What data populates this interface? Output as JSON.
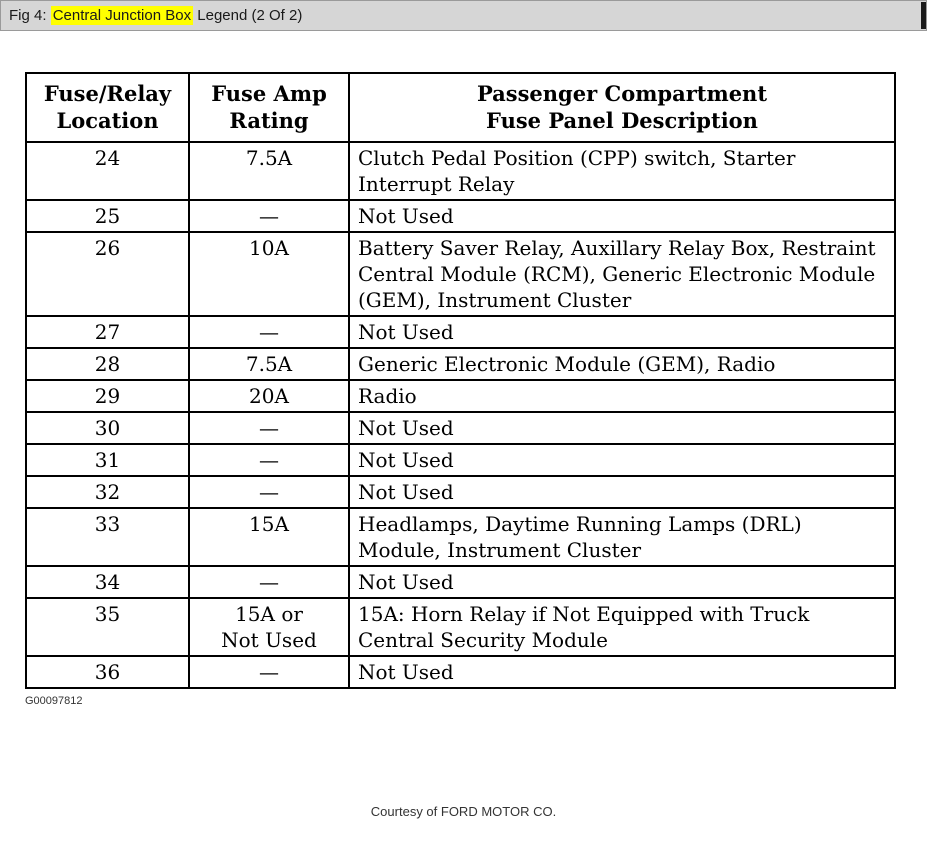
{
  "header": {
    "prefix": "Fig 4: ",
    "highlight": "Central Junction Box",
    "suffix": " Legend (2 Of 2)",
    "highlight_color": "#ffff00"
  },
  "table": {
    "header": {
      "col1": {
        "line1": "Fuse/Relay",
        "line2": "Location"
      },
      "col2": {
        "line1": "Fuse Amp",
        "line2": "Rating"
      },
      "col3": {
        "line1": "Passenger Compartment",
        "line2": "Fuse Panel Description"
      }
    },
    "rows": [
      {
        "location": "24",
        "rating": "7.5A",
        "description": "Clutch Pedal Position (CPP) switch, Starter Interrupt Relay"
      },
      {
        "location": "25",
        "rating": "—",
        "description": "Not Used"
      },
      {
        "location": "26",
        "rating": "10A",
        "description": "Battery Saver Relay, Auxillary Relay Box, Restraint Central Module (RCM), Generic Electronic Module (GEM), Instrument Cluster"
      },
      {
        "location": "27",
        "rating": "—",
        "description": "Not Used"
      },
      {
        "location": "28",
        "rating": "7.5A",
        "description": "Generic Electronic Module (GEM), Radio"
      },
      {
        "location": "29",
        "rating": "20A",
        "description": "Radio"
      },
      {
        "location": "30",
        "rating": "—",
        "description": "Not Used"
      },
      {
        "location": "31",
        "rating": "—",
        "description": "Not Used"
      },
      {
        "location": "32",
        "rating": "—",
        "description": "Not Used"
      },
      {
        "location": "33",
        "rating": "15A",
        "description": "Headlamps, Daytime Running Lamps (DRL) Module, Instrument Cluster"
      },
      {
        "location": "34",
        "rating": "—",
        "description": "Not Used"
      },
      {
        "location": "35",
        "rating": "15A or\nNot Used",
        "description": "15A: Horn Relay if Not Equipped with Truck Central Security Module"
      },
      {
        "location": "36",
        "rating": "—",
        "description": "Not Used"
      }
    ]
  },
  "footer": {
    "figure_id": "G00097812",
    "courtesy": "Courtesy of FORD MOTOR CO."
  }
}
